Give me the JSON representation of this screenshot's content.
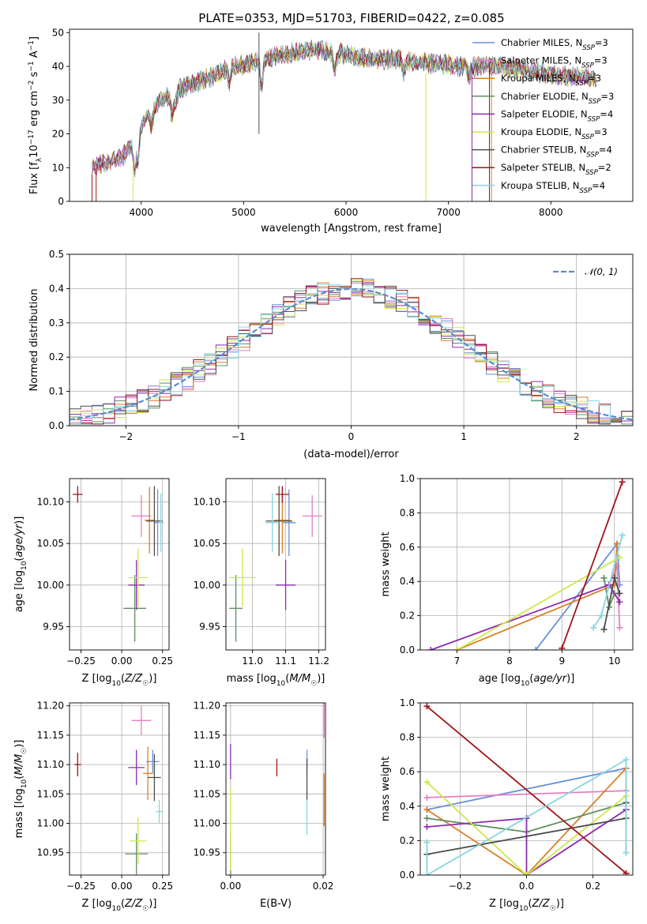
{
  "figure": {
    "title": "PLATE=0353, MJD=51703, FIBERID=0422, z=0.085"
  },
  "colors": {
    "Chabrier MILES": "#6a8fd8",
    "Salpeter MILES": "#e57fc1",
    "Kroupa MILES": "#d98026",
    "Chabrier ELODIE": "#5f8f62",
    "Salpeter ELODIE": "#8e2bb0",
    "Kroupa ELODIE": "#cde84d",
    "Chabrier STELIB": "#4d4d4d",
    "Salpeter STELIB": "#a01518",
    "Kroupa STELIB": "#86d6de"
  },
  "chart_data": [
    {
      "id": "spectrum",
      "type": "line",
      "xlabel": "wavelength [Angstrom, rest frame]",
      "ylabel": "Flux [f_λ 10^-17 erg cm^-2 s^-1 A^-1]",
      "xlim": [
        3300,
        8800
      ],
      "ylim": [
        0,
        51
      ],
      "xticks": [
        4000,
        5000,
        6000,
        7000,
        8000
      ],
      "yticks": [
        0,
        10,
        20,
        30,
        40,
        50
      ],
      "grid": false,
      "legend_position": "top-right",
      "legend": [
        {
          "model": "Chabrier MILES",
          "label": "Chabrier MILES, N",
          "sub": "SSP",
          "n": "=3"
        },
        {
          "model": "Salpeter MILES",
          "label": "Salpeter MILES, N",
          "sub": "SSP",
          "n": "=3"
        },
        {
          "model": "Kroupa MILES",
          "label": "Kroupa MILES, N",
          "sub": "SSP",
          "n": "=3"
        },
        {
          "model": "Chabrier ELODIE",
          "label": "Chabrier ELODIE, N",
          "sub": "SSP",
          "n": "=3"
        },
        {
          "model": "Salpeter ELODIE",
          "label": "Salpeter ELODIE, N",
          "sub": "SSP",
          "n": "=4"
        },
        {
          "model": "Kroupa ELODIE",
          "label": "Kroupa ELODIE, N",
          "sub": "SSP",
          "n": "=3"
        },
        {
          "model": "Chabrier STELIB",
          "label": "Chabrier STELIB, N",
          "sub": "SSP",
          "n": "=4"
        },
        {
          "model": "Salpeter STELIB",
          "label": "Salpeter STELIB, N",
          "sub": "SSP",
          "n": "=2"
        },
        {
          "model": "Kroupa STELIB",
          "label": "Kroupa STELIB, N",
          "sub": "SSP",
          "n": "=4"
        }
      ],
      "continuum": {
        "x": [
          3520,
          3700,
          3850,
          3950,
          4050,
          4200,
          4350,
          4500,
          4700,
          4900,
          5100,
          5300,
          5500,
          5700,
          5900,
          6100,
          6300,
          6500,
          6700,
          6900,
          7100,
          7300,
          7500,
          7700,
          7900,
          8100,
          8300,
          8450
        ],
        "y": [
          10,
          12,
          14,
          19,
          25,
          30,
          33,
          35,
          37,
          40,
          41,
          43,
          44,
          45,
          44,
          43,
          42,
          42,
          41,
          41,
          40,
          40,
          40,
          39,
          38,
          37,
          37,
          36
        ]
      },
      "spectral_dips": [
        {
          "x": 3934,
          "depth": 9
        },
        {
          "x": 3968,
          "depth": 8
        },
        {
          "x": 4102,
          "depth": 4
        },
        {
          "x": 4304,
          "depth": 7
        },
        {
          "x": 4340,
          "depth": 3
        },
        {
          "x": 4861,
          "depth": 4
        },
        {
          "x": 5175,
          "depth": 8
        },
        {
          "x": 5890,
          "depth": 6
        },
        {
          "x": 6563,
          "depth": 3
        },
        {
          "x": 7200,
          "depth": 3
        }
      ],
      "artifacts": [
        {
          "x": 5150,
          "y0": 20,
          "y1": 50
        },
        {
          "x": 3520,
          "y0": 0,
          "y1": 8
        },
        {
          "x": 3560,
          "y0": 0,
          "y1": 10
        },
        {
          "x": 3920,
          "y0": 0,
          "y1": 12
        },
        {
          "x": 6780,
          "y0": 0,
          "y1": 38
        },
        {
          "x": 7230,
          "y0": 0,
          "y1": 40
        },
        {
          "x": 7400,
          "y0": 0,
          "y1": 41
        },
        {
          "x": 7420,
          "y0": 0,
          "y1": 41
        }
      ]
    },
    {
      "id": "residuals",
      "type": "histogram",
      "xlabel": "(data-model)/error",
      "ylabel": "Normed distribution",
      "xlim": [
        -2.5,
        2.5
      ],
      "ylim": [
        0,
        0.5
      ],
      "xticks": [
        -2,
        -1,
        0,
        1,
        2
      ],
      "yticks": [
        0.0,
        0.1,
        0.2,
        0.3,
        0.4,
        0.5
      ],
      "grid": true,
      "legend_position": "top-right",
      "legend": [
        {
          "label": "𝒩(0, 1)",
          "color": "#5b8bd0",
          "style": "dashed"
        }
      ],
      "bin_width": 0.1,
      "bin_start": -2.5
    },
    {
      "id": "age_vs_Z",
      "type": "errorbar",
      "xlabel": "Z [log₁₀(Z/Z☉)]",
      "ylabel": "age  [log₁₀(age/yr)]",
      "xlim": [
        -0.32,
        0.29
      ],
      "ylim": [
        9.922,
        10.128
      ],
      "xticks": [
        -0.25,
        0.0,
        0.25
      ],
      "yticks": [
        9.95,
        10.0,
        10.05,
        10.1
      ],
      "grid": true,
      "points": [
        {
          "model": "Chabrier MILES",
          "x": 0.22,
          "y": 10.075,
          "xerr": 0.02,
          "yerr": 0.04
        },
        {
          "model": "Salpeter MILES",
          "x": 0.12,
          "y": 10.083,
          "xerr": 0.06,
          "yerr": 0.025
        },
        {
          "model": "Kroupa MILES",
          "x": 0.17,
          "y": 10.078,
          "xerr": 0.03,
          "yerr": 0.04
        },
        {
          "model": "Chabrier ELODIE",
          "x": 0.08,
          "y": 9.972,
          "xerr": 0.07,
          "yerr": 0.04
        },
        {
          "model": "Salpeter ELODIE",
          "x": 0.09,
          "y": 10.0,
          "xerr": 0.05,
          "yerr": 0.03
        },
        {
          "model": "Kroupa ELODIE",
          "x": 0.1,
          "y": 10.009,
          "xerr": 0.06,
          "yerr": 0.035
        },
        {
          "model": "Chabrier STELIB",
          "x": 0.2,
          "y": 10.077,
          "xerr": 0.05,
          "yerr": 0.042
        },
        {
          "model": "Salpeter STELIB",
          "x": -0.27,
          "y": 10.109,
          "xerr": 0.03,
          "yerr": 0.01
        },
        {
          "model": "Kroupa STELIB",
          "x": 0.24,
          "y": 10.075,
          "xerr": 0.02,
          "yerr": 0.035
        }
      ]
    },
    {
      "id": "age_vs_mass",
      "type": "errorbar",
      "xlabel": "mass [log₁₀(M/M☉)]",
      "ylabel": "",
      "xlim": [
        10.92,
        11.22
      ],
      "ylim": [
        9.922,
        10.128
      ],
      "xticks": [
        11.0,
        11.1,
        11.2
      ],
      "yticks": [
        9.95,
        10.0,
        10.05,
        10.1
      ],
      "grid": true,
      "points": [
        {
          "model": "Chabrier MILES",
          "x": 11.11,
          "y": 10.075,
          "xerr": 0.02,
          "yerr": 0.04
        },
        {
          "model": "Salpeter MILES",
          "x": 11.18,
          "y": 10.083,
          "xerr": 0.03,
          "yerr": 0.025
        },
        {
          "model": "Kroupa MILES",
          "x": 11.09,
          "y": 10.078,
          "xerr": 0.025,
          "yerr": 0.04
        },
        {
          "model": "Chabrier ELODIE",
          "x": 10.95,
          "y": 9.972,
          "xerr": 0.02,
          "yerr": 0.04
        },
        {
          "model": "Salpeter ELODIE",
          "x": 11.1,
          "y": 10.0,
          "xerr": 0.03,
          "yerr": 0.03
        },
        {
          "model": "Kroupa ELODIE",
          "x": 10.97,
          "y": 10.009,
          "xerr": 0.04,
          "yerr": 0.035
        },
        {
          "model": "Chabrier STELIB",
          "x": 11.08,
          "y": 10.077,
          "xerr": 0.04,
          "yerr": 0.042
        },
        {
          "model": "Salpeter STELIB",
          "x": 11.09,
          "y": 10.109,
          "xerr": 0.02,
          "yerr": 0.01
        },
        {
          "model": "Kroupa STELIB",
          "x": 11.06,
          "y": 10.075,
          "xerr": 0.02,
          "yerr": 0.035
        }
      ]
    },
    {
      "id": "weight_vs_age",
      "type": "line",
      "xlabel": "age  [log₁₀(age/yr)]",
      "ylabel": "mass weight",
      "xlim": [
        6.3,
        10.35
      ],
      "ylim": [
        0,
        1.0
      ],
      "xticks": [
        7,
        8,
        9,
        10
      ],
      "yticks": [
        0.0,
        0.2,
        0.4,
        0.6,
        0.8,
        1.0
      ],
      "grid": true,
      "series": [
        {
          "model": "Chabrier MILES",
          "x": [
            8.5,
            10.05,
            10.1
          ],
          "y": [
            0.0,
            0.62,
            0.38
          ]
        },
        {
          "model": "Salpeter MILES",
          "x": [
            9.9,
            10.05,
            10.1
          ],
          "y": [
            0.38,
            0.49,
            0.13
          ]
        },
        {
          "model": "Kroupa MILES",
          "x": [
            7.0,
            10.0,
            10.05
          ],
          "y": [
            0.0,
            0.38,
            0.62
          ]
        },
        {
          "model": "Chabrier ELODIE",
          "x": [
            9.8,
            9.9,
            10.0
          ],
          "y": [
            0.42,
            0.25,
            0.33
          ]
        },
        {
          "model": "Salpeter ELODIE",
          "x": [
            6.5,
            9.9,
            10.1
          ],
          "y": [
            0.0,
            0.38,
            0.28
          ]
        },
        {
          "model": "Kroupa ELODIE",
          "x": [
            7.0,
            10.1
          ],
          "y": [
            0.0,
            0.54
          ]
        },
        {
          "model": "Chabrier STELIB",
          "x": [
            9.8,
            10.0,
            10.1
          ],
          "y": [
            0.12,
            0.42,
            0.33
          ]
        },
        {
          "model": "Salpeter STELIB",
          "x": [
            9.0,
            10.15
          ],
          "y": [
            0.01,
            0.98
          ]
        },
        {
          "model": "Kroupa STELIB",
          "x": [
            9.6,
            9.75,
            10.15
          ],
          "y": [
            0.13,
            0.2,
            0.67
          ]
        }
      ]
    },
    {
      "id": "mass_vs_Z",
      "type": "errorbar",
      "xlabel": "Z [log₁₀(Z/Z☉)]",
      "ylabel": "mass [log₁₀(M/M☉)]",
      "xlim": [
        -0.32,
        0.29
      ],
      "ylim": [
        10.912,
        11.205
      ],
      "xticks": [
        -0.25,
        0.0,
        0.25
      ],
      "yticks": [
        10.95,
        11.0,
        11.05,
        11.1,
        11.15,
        11.2
      ],
      "grid": true,
      "points": [
        {
          "model": "Chabrier MILES",
          "x": 0.19,
          "y": 11.105,
          "xerr": 0.04,
          "yerr": 0.02
        },
        {
          "model": "Salpeter MILES",
          "x": 0.12,
          "y": 11.175,
          "xerr": 0.06,
          "yerr": 0.025
        },
        {
          "model": "Kroupa MILES",
          "x": 0.16,
          "y": 11.085,
          "xerr": 0.03,
          "yerr": 0.045
        },
        {
          "model": "Chabrier ELODIE",
          "x": 0.09,
          "y": 10.948,
          "xerr": 0.07,
          "yerr": 0.035
        },
        {
          "model": "Salpeter ELODIE",
          "x": 0.09,
          "y": 11.095,
          "xerr": 0.05,
          "yerr": 0.03
        },
        {
          "model": "Kroupa ELODIE",
          "x": 0.1,
          "y": 10.97,
          "xerr": 0.05,
          "yerr": 0.04
        },
        {
          "model": "Chabrier STELIB",
          "x": 0.2,
          "y": 11.078,
          "xerr": 0.04,
          "yerr": 0.04
        },
        {
          "model": "Salpeter STELIB",
          "x": -0.27,
          "y": 11.1,
          "xerr": 0.02,
          "yerr": 0.02
        },
        {
          "model": "Kroupa STELIB",
          "x": 0.23,
          "y": 11.02,
          "xerr": 0.02,
          "yerr": 0.02
        }
      ]
    },
    {
      "id": "mass_vs_EBV",
      "type": "errorbar",
      "xlabel": "E(B-V)",
      "ylabel": "",
      "xlim": [
        -0.001,
        0.0205
      ],
      "ylim": [
        10.912,
        11.205
      ],
      "xticks": [
        0.0,
        0.02
      ],
      "yticks": [
        10.95,
        11.0,
        11.05,
        11.1,
        11.15,
        11.2
      ],
      "grid": true,
      "points": [
        {
          "model": "Chabrier MILES",
          "x": 0.0165,
          "y": 11.105,
          "xerr": 0.0,
          "yerr": 0.02
        },
        {
          "model": "Salpeter MILES",
          "x": 0.0202,
          "y": 11.175,
          "xerr": 0.0,
          "yerr": 0.03
        },
        {
          "model": "Kroupa MILES",
          "x": 0.0202,
          "y": 11.04,
          "xerr": 0.0,
          "yerr": 0.045
        },
        {
          "model": "Chabrier ELODIE",
          "x": 0.0,
          "y": 10.948,
          "xerr": 0.0,
          "yerr": 0.035
        },
        {
          "model": "Salpeter ELODIE",
          "x": 0.0,
          "y": 11.105,
          "xerr": 0.0,
          "yerr": 0.03
        },
        {
          "model": "Kroupa ELODIE",
          "x": 0.0,
          "y": 10.99,
          "xerr": 0.0,
          "yerr": 0.07
        },
        {
          "model": "Chabrier STELIB",
          "x": 0.0165,
          "y": 11.075,
          "xerr": 0.0,
          "yerr": 0.035
        },
        {
          "model": "Salpeter STELIB",
          "x": 0.01,
          "y": 11.095,
          "xerr": 0.0,
          "yerr": 0.015
        },
        {
          "model": "Kroupa STELIB",
          "x": 0.0165,
          "y": 11.01,
          "xerr": 0.0,
          "yerr": 0.03
        }
      ]
    },
    {
      "id": "weight_vs_Z",
      "type": "line",
      "xlabel": "Z [log₁₀(Z/Z☉)]",
      "ylabel": "mass weight",
      "xlim": [
        -0.32,
        0.32
      ],
      "ylim": [
        0,
        1.0
      ],
      "xticks": [
        -0.2,
        0.0,
        0.2
      ],
      "yticks": [
        0.0,
        0.2,
        0.4,
        0.6,
        0.8,
        1.0
      ],
      "grid": true,
      "series": [
        {
          "model": "Chabrier MILES",
          "x": [
            -0.3,
            0.3
          ],
          "y": [
            0.38,
            0.62
          ]
        },
        {
          "model": "Salpeter MILES",
          "x": [
            -0.3,
            0.3,
            0.3
          ],
          "y": [
            0.45,
            0.49,
            0.13
          ]
        },
        {
          "model": "Kroupa MILES",
          "x": [
            -0.3,
            0.0,
            0.3,
            0.3
          ],
          "y": [
            0.38,
            0.0,
            0.62,
            0.38
          ]
        },
        {
          "model": "Chabrier ELODIE",
          "x": [
            -0.3,
            0.0,
            0.3
          ],
          "y": [
            0.33,
            0.25,
            0.42
          ]
        },
        {
          "model": "Salpeter ELODIE",
          "x": [
            -0.3,
            0.0,
            0.0,
            0.3
          ],
          "y": [
            0.28,
            0.33,
            0.0,
            0.38
          ]
        },
        {
          "model": "Kroupa ELODIE",
          "x": [
            -0.3,
            0.0,
            0.3
          ],
          "y": [
            0.54,
            0.0,
            0.46
          ]
        },
        {
          "model": "Chabrier STELIB",
          "x": [
            -0.3,
            0.3,
            0.3
          ],
          "y": [
            0.12,
            0.33,
            0.42
          ]
        },
        {
          "model": "Salpeter STELIB",
          "x": [
            -0.3,
            0.3
          ],
          "y": [
            0.98,
            0.01
          ]
        },
        {
          "model": "Kroupa STELIB",
          "x": [
            -0.3,
            -0.3,
            0.3,
            0.3
          ],
          "y": [
            0.19,
            0.0,
            0.67,
            0.13
          ]
        }
      ]
    }
  ]
}
